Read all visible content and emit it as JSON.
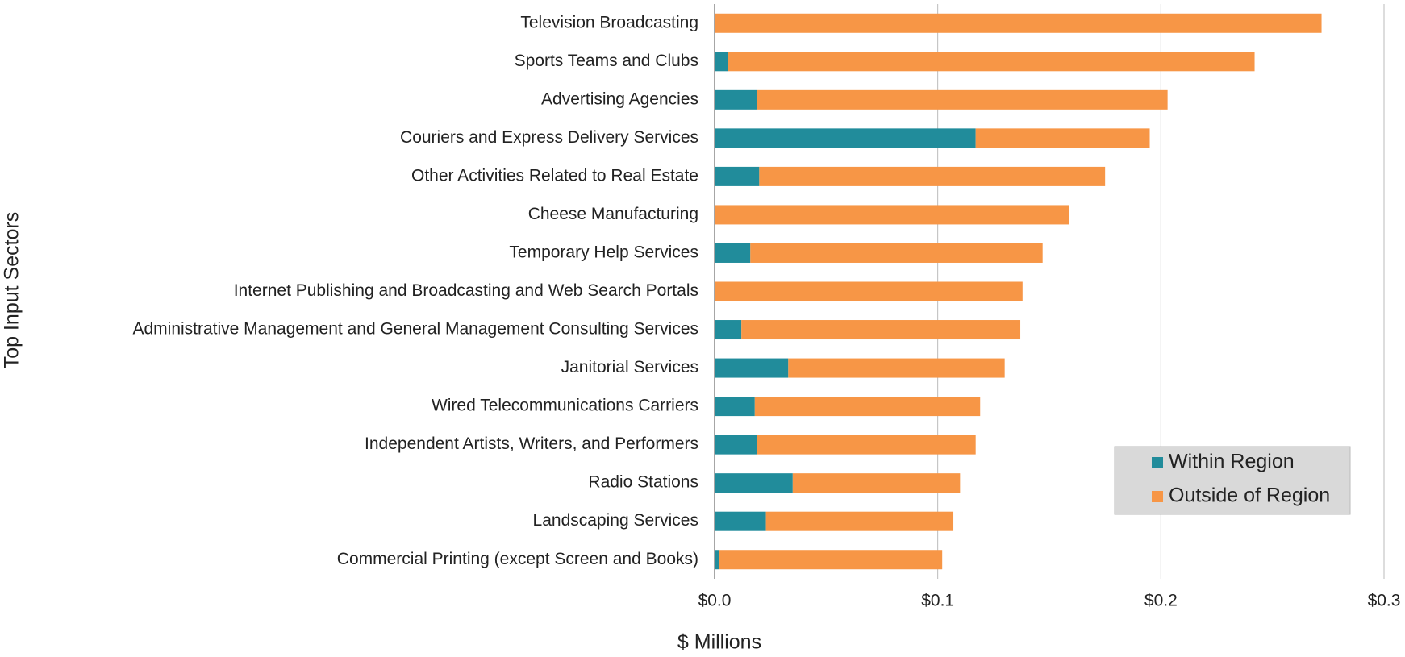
{
  "chart_data": {
    "type": "stacked-barh",
    "xlabel": "$ Millions",
    "ylabel": "Top Input Sectors",
    "categories": [
      "Television Broadcasting",
      "Sports Teams and Clubs",
      "Advertising Agencies",
      "Couriers and Express Delivery Services",
      "Other Activities Related to Real Estate",
      "Cheese Manufacturing",
      "Temporary Help Services",
      "Internet Publishing and Broadcasting and Web Search Portals",
      "Administrative Management and General Management Consulting Services",
      "Janitorial Services",
      "Wired Telecommunications Carriers",
      "Independent Artists, Writers, and Performers",
      "Radio Stations",
      "Landscaping Services",
      "Commercial Printing (except Screen and Books)"
    ],
    "series": [
      {
        "name": "Within Region",
        "color": "#218c9b",
        "values": [
          0,
          0.006,
          0.019,
          0.117,
          0.02,
          0,
          0.016,
          0,
          0.012,
          0.033,
          0.018,
          0.019,
          0.035,
          0.023,
          0.002
        ]
      },
      {
        "name": "Outside of Region",
        "color": "#f79646",
        "values": [
          0.272,
          0.236,
          0.184,
          0.078,
          0.155,
          0.159,
          0.131,
          0.138,
          0.125,
          0.097,
          0.101,
          0.098,
          0.075,
          0.084,
          0.1
        ]
      }
    ],
    "xlim": [
      0,
      0.3
    ],
    "xticks": [
      {
        "value": 0,
        "label": "$0.0"
      },
      {
        "value": 0.1,
        "label": "$0.1"
      },
      {
        "value": 0.2,
        "label": "$0.2"
      },
      {
        "value": 0.3,
        "label": "$0.3"
      }
    ],
    "grid": true,
    "legend": "lower-right"
  }
}
